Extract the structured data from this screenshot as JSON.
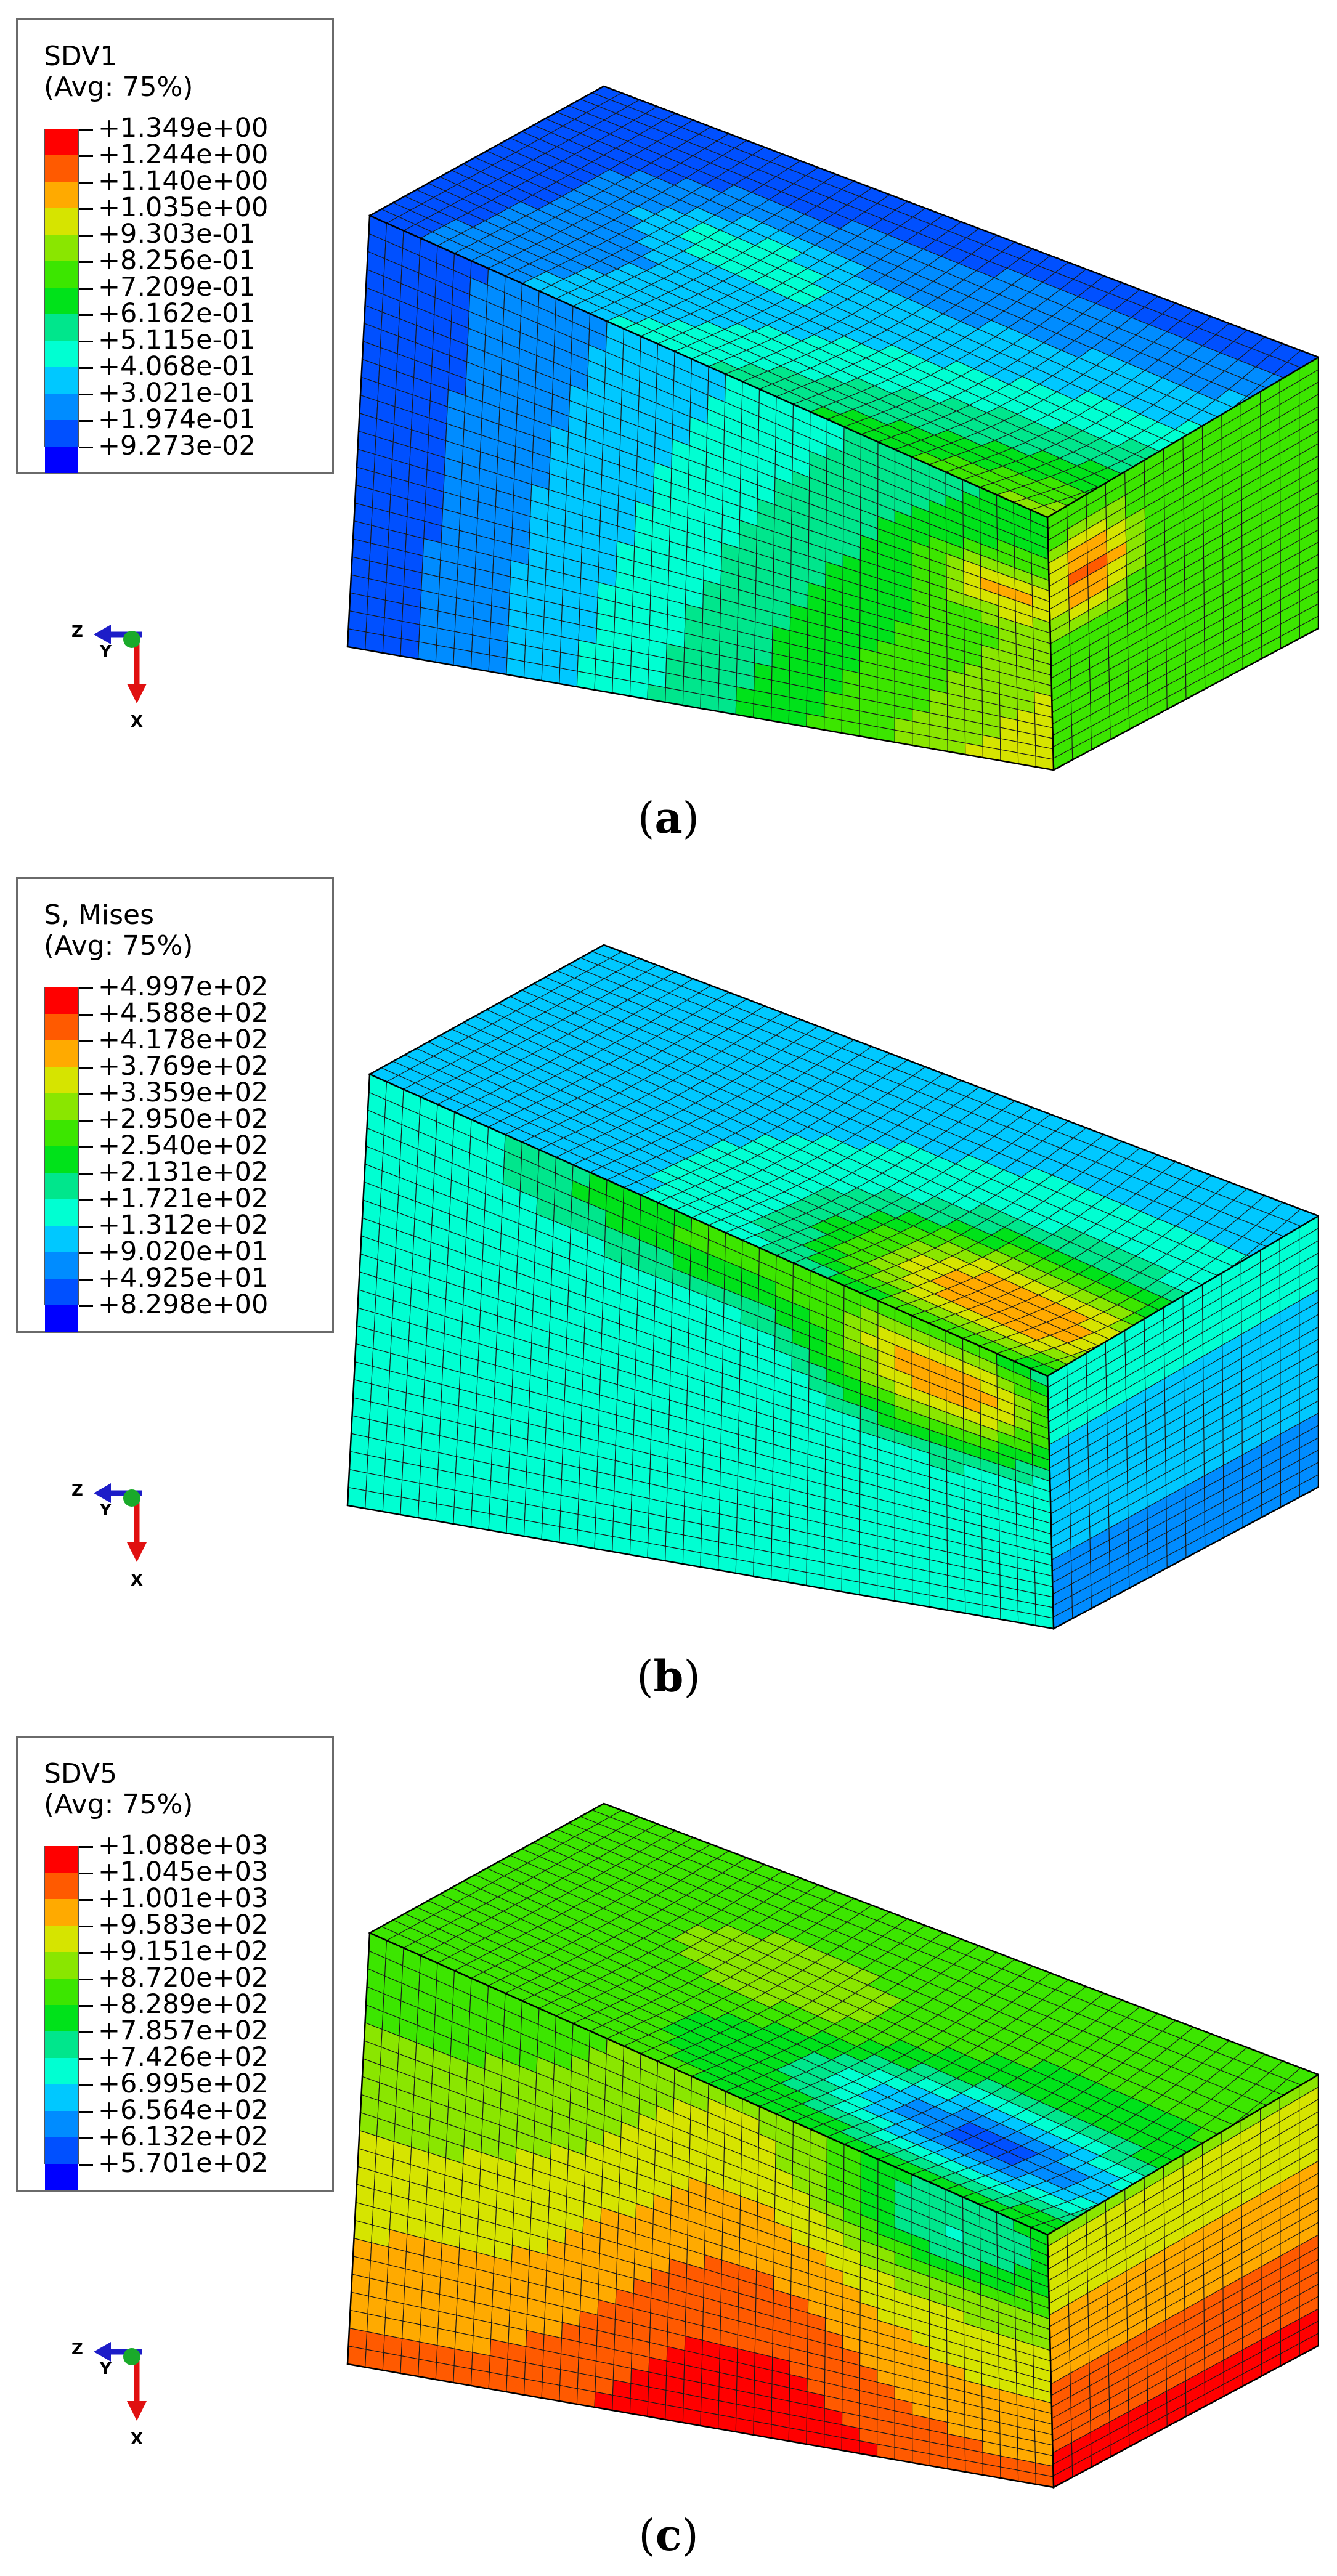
{
  "panels": [
    {
      "id": "a",
      "caption_open": "(",
      "caption_letter": "a",
      "caption_close": ")",
      "legend": {
        "variable": "SDV1",
        "averaging": "(Avg: 75%)",
        "values": [
          "+1.349e+00",
          "+1.244e+00",
          "+1.140e+00",
          "+1.035e+00",
          "+9.303e-01",
          "+8.256e-01",
          "+7.209e-01",
          "+6.162e-01",
          "+5.115e-01",
          "+4.068e-01",
          "+3.021e-01",
          "+1.974e-01",
          "+9.273e-02"
        ]
      },
      "triad": {
        "z": "Z",
        "y": "Y",
        "x": "X"
      }
    },
    {
      "id": "b",
      "caption_open": "(",
      "caption_letter": "b",
      "caption_close": ")",
      "legend": {
        "variable": "S, Mises",
        "averaging": "(Avg: 75%)",
        "values": [
          "+4.997e+02",
          "+4.588e+02",
          "+4.178e+02",
          "+3.769e+02",
          "+3.359e+02",
          "+2.950e+02",
          "+2.540e+02",
          "+2.131e+02",
          "+1.721e+02",
          "+1.312e+02",
          "+9.020e+01",
          "+4.925e+01",
          "+8.298e+00"
        ]
      },
      "triad": {
        "z": "Z",
        "y": "Y",
        "x": "X"
      }
    },
    {
      "id": "c",
      "caption_open": "(",
      "caption_letter": "c",
      "caption_close": ")",
      "legend": {
        "variable": "SDV5",
        "averaging": "(Avg: 75%)",
        "values": [
          "+1.088e+03",
          "+1.045e+03",
          "+1.001e+03",
          "+9.583e+02",
          "+9.151e+02",
          "+8.720e+02",
          "+8.289e+02",
          "+7.857e+02",
          "+7.426e+02",
          "+6.995e+02",
          "+6.564e+02",
          "+6.132e+02",
          "+5.701e+02"
        ]
      },
      "triad": {
        "z": "Z",
        "y": "Y",
        "x": "X"
      }
    }
  ],
  "colormap": [
    "#ff0000",
    "#ff5a00",
    "#ffaa00",
    "#d6e400",
    "#8ae600",
    "#3ce600",
    "#00e21a",
    "#00e68c",
    "#00ffd2",
    "#00c8ff",
    "#008cff",
    "#0050ff",
    "#0000ff"
  ],
  "mesh_colors": {
    "line": "#1a1a1a",
    "highlight_red": "#ff0000"
  }
}
